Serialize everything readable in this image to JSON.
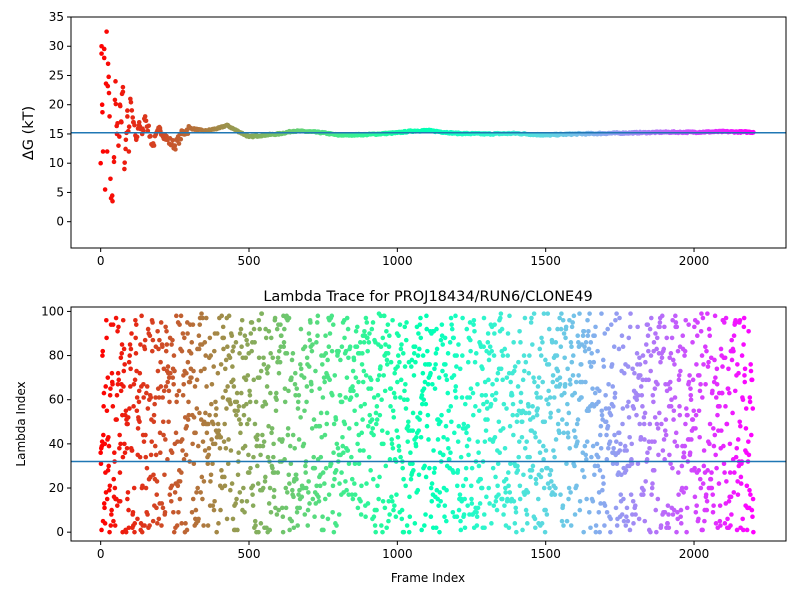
{
  "chart_data": [
    {
      "type": "scatter",
      "title": "",
      "xlabel": "",
      "ylabel": "ΔG (kT)",
      "xlim": [
        -100,
        2310
      ],
      "ylim": [
        -4.5,
        35
      ],
      "xticks": [
        0,
        500,
        1000,
        1500,
        2000
      ],
      "yticks": [
        0,
        5,
        10,
        15,
        20,
        25,
        30,
        35
      ],
      "xtick_labels": [
        "0",
        "500",
        "1000",
        "1500",
        "2000"
      ],
      "ytick_labels": [
        "0",
        "5",
        "10",
        "15",
        "20",
        "25",
        "30",
        "35"
      ],
      "hline": 15.2,
      "colormap": "rainbow (red at frame 0 → violet at frame 2200)",
      "grid": false,
      "series_summary": "cumulative free-energy estimate per frame; widely scattered (3.5–32.5) for first ~100 frames, converging to ~15 after ~500 frames",
      "x": [
        0,
        3,
        5,
        8,
        12,
        15,
        20,
        22,
        25,
        28,
        30,
        35,
        40,
        45,
        50,
        55,
        60,
        65,
        70,
        75,
        80,
        85,
        90,
        95,
        100,
        110,
        120,
        130,
        140,
        150,
        175,
        200,
        225,
        250,
        275,
        300,
        350,
        400,
        425,
        450,
        500,
        550,
        600,
        650,
        700,
        750,
        800,
        900,
        1000,
        1050,
        1100,
        1200,
        1300,
        1400,
        1500,
        1600,
        1700,
        1800,
        1900,
        2000,
        2100,
        2200
      ],
      "y": [
        10,
        30,
        20,
        12,
        28,
        5.5,
        32.5,
        12,
        27,
        22,
        18,
        4,
        3.5,
        11,
        24,
        15,
        13,
        20,
        17,
        23,
        9,
        14,
        19,
        12,
        21,
        17,
        14,
        17,
        15,
        18,
        13,
        16,
        14,
        13,
        15,
        16,
        15.5,
        16,
        16.5,
        15.8,
        14.5,
        14.8,
        15,
        15.5,
        15.4,
        15.2,
        14.8,
        14.9,
        15.2,
        15.5,
        15.6,
        15.1,
        15.0,
        15.1,
        14.8,
        15.0,
        15.1,
        15.2,
        15.3,
        15.3,
        15.4,
        15.3
      ]
    },
    {
      "type": "scatter",
      "title": "Lambda Trace for PROJ18434/RUN6/CLONE49",
      "xlabel": "Frame Index",
      "ylabel": "Lambda Index",
      "xlim": [
        -100,
        2310
      ],
      "ylim": [
        -4,
        102
      ],
      "xticks": [
        0,
        500,
        1000,
        1500,
        2000
      ],
      "yticks": [
        0,
        20,
        40,
        60,
        80,
        100
      ],
      "xtick_labels": [
        "0",
        "500",
        "1000",
        "1500",
        "2000"
      ],
      "ytick_labels": [
        "0",
        "20",
        "40",
        "60",
        "80",
        "100"
      ],
      "hline": 32,
      "colormap": "rainbow (red at frame 0 → violet at frame 2200)",
      "grid": false,
      "series_summary": "one lambda index (0–99) per frame for ~2200 frames, uniformly scattered across the full range",
      "n_points": 2200,
      "x_range": [
        0,
        2200
      ],
      "y_range": [
        0,
        99
      ]
    }
  ]
}
